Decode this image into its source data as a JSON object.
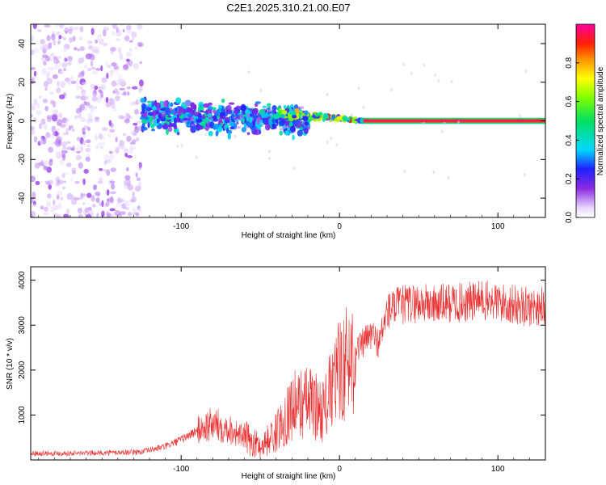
{
  "chart_data": [
    {
      "type": "heatmap",
      "title": "C2E1.2025.310.21.00.E07",
      "xlabel": "Height of straight line (km)",
      "ylabel": "Frequency (Hz)",
      "xlim": [
        -195,
        130
      ],
      "ylim": [
        -50,
        50
      ],
      "xticks": [
        -100,
        0,
        100
      ],
      "yticks": [
        -40,
        -20,
        0,
        20,
        40
      ],
      "colorbar": {
        "label": "Normalized spectral amplitude",
        "range": [
          0,
          1
        ],
        "ticks": [
          "0.0",
          "0.2",
          "0.4",
          "0.6",
          "0.8"
        ]
      },
      "regions": [
        {
          "name": "diffuse scatter",
          "x_range": [
            -195,
            -125
          ],
          "freq_range": [
            -50,
            50
          ],
          "amplitude": 0.08
        },
        {
          "name": "dense band",
          "x_range": [
            -125,
            -20
          ],
          "freq_range": [
            -10,
            12
          ],
          "amplitude": 0.25
        },
        {
          "name": "narrowing line",
          "x_range": [
            -40,
            15
          ],
          "freq_range": [
            -3,
            6
          ],
          "amplitude": 0.45
        },
        {
          "name": "steady tone",
          "x_range": [
            15,
            130
          ],
          "freq_range": [
            -1,
            1
          ],
          "amplitude": 0.95
        }
      ]
    },
    {
      "type": "line",
      "xlabel": "Height of straight line (km)",
      "ylabel": "SNR (10 * v/v)",
      "xlim": [
        -195,
        130
      ],
      "ylim": [
        0,
        4300
      ],
      "xticks": [
        -100,
        0,
        100
      ],
      "yticks": [
        1000,
        2000,
        3000,
        4000
      ],
      "series": [
        {
          "name": "SNR",
          "color": "#e83030",
          "x": [
            -195,
            -160,
            -125,
            -110,
            -100,
            -90,
            -80,
            -70,
            -60,
            -50,
            -40,
            -30,
            -20,
            -10,
            0,
            10,
            20,
            25,
            30,
            35,
            40,
            50,
            60,
            70,
            80,
            90,
            100,
            110,
            120,
            130
          ],
          "y": [
            150,
            150,
            180,
            300,
            450,
            650,
            800,
            700,
            500,
            300,
            600,
            1200,
            1300,
            1100,
            2000,
            2400,
            2800,
            2600,
            3300,
            3400,
            3450,
            3500,
            3450,
            3500,
            3500,
            3550,
            3500,
            3450,
            3400,
            3450
          ]
        }
      ]
    }
  ]
}
